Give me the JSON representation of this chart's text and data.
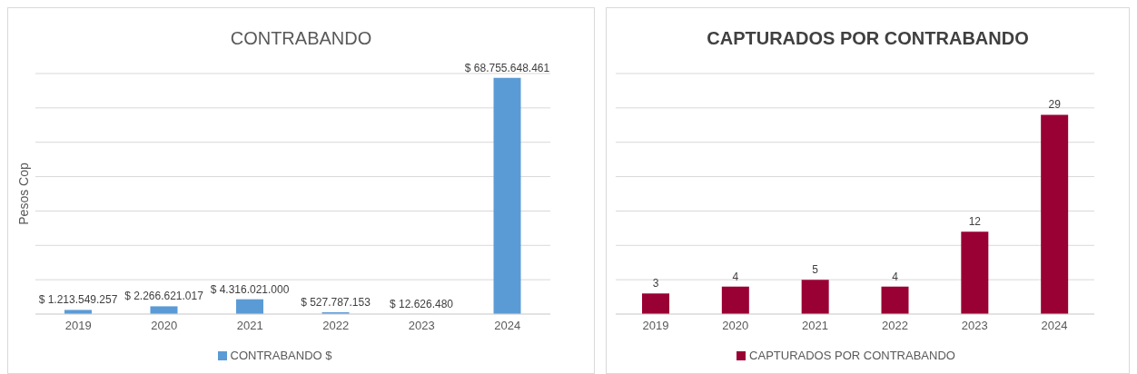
{
  "chart_data": [
    {
      "type": "bar",
      "title": "CONTRABANDO",
      "ylabel": "Pesos Cop",
      "categories": [
        "2019",
        "2020",
        "2021",
        "2022",
        "2023",
        "2024"
      ],
      "series": [
        {
          "name": "CONTRABANDO $",
          "color": "#5b9bd5",
          "values": [
            1213549257,
            2266621017,
            4316021000,
            527787153,
            12626480,
            68755648461
          ],
          "value_labels": [
            "$ 1.213.549.257",
            "$ 2.266.621.017",
            "$ 4.316.021.000",
            "$ 527.787.153",
            "$ 12.626.480",
            "$ 68.755.648.461"
          ]
        }
      ],
      "grid": "y",
      "legend": "bottom",
      "tick_labels": "x"
    },
    {
      "type": "bar",
      "title": "CAPTURADOS POR CONTRABANDO",
      "categories": [
        "2019",
        "2020",
        "2021",
        "2022",
        "2023",
        "2024"
      ],
      "series": [
        {
          "name": "CAPTURADOS POR CONTRABANDO",
          "color": "#990033",
          "values": [
            3,
            4,
            5,
            4,
            12,
            29
          ]
        }
      ],
      "grid": "y",
      "legend": "bottom",
      "data_labels": true,
      "tick_labels": "x"
    }
  ]
}
